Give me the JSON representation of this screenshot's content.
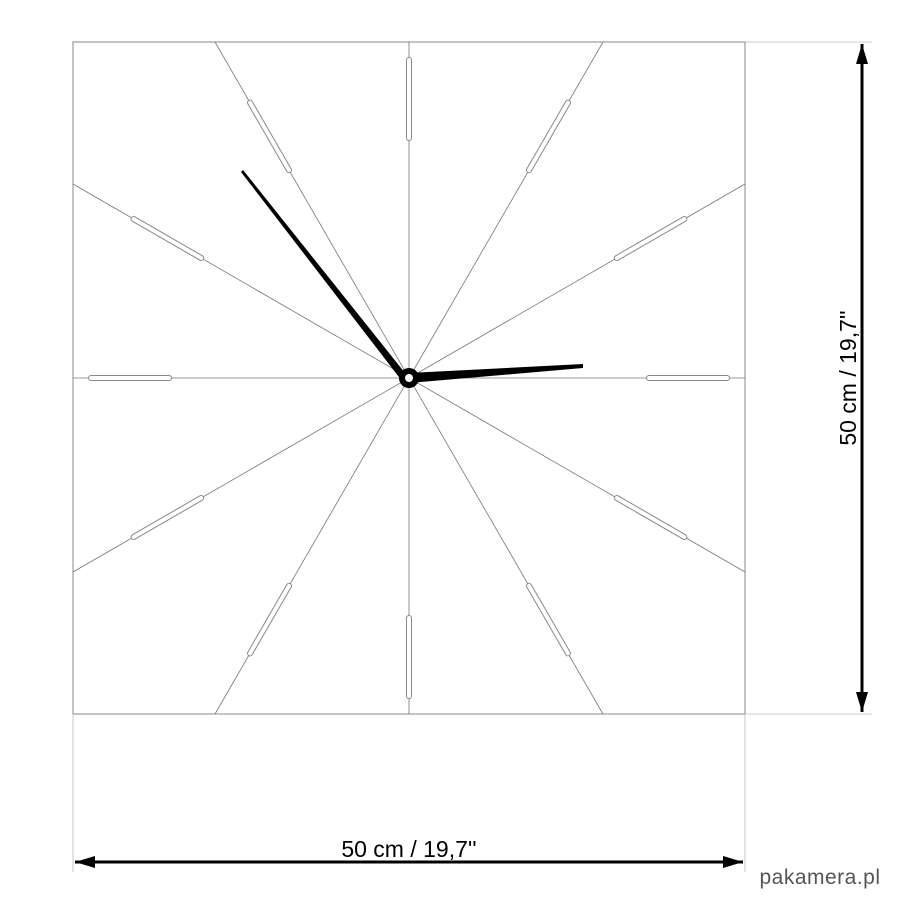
{
  "dimensions": {
    "width_label": "50 cm / 19,7''",
    "height_label": "50 cm / 19,7''"
  },
  "watermark": "pakamera.pl"
}
